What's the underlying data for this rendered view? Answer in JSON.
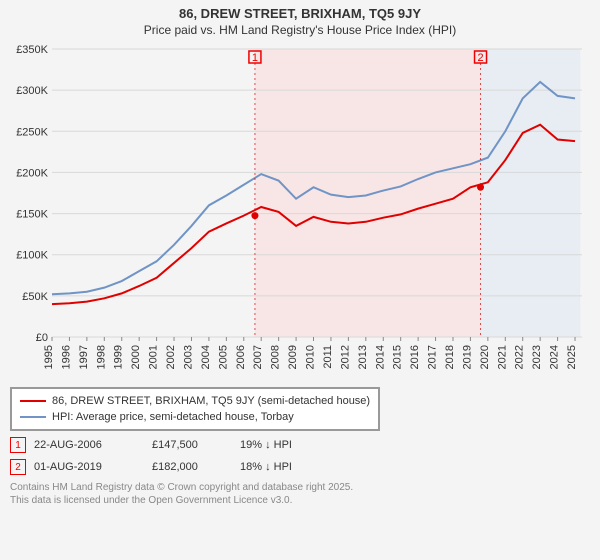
{
  "title": "86, DREW STREET, BRIXHAM, TQ5 9JY",
  "subtitle": "Price paid vs. HM Land Registry's House Price Index (HPI)",
  "chart": {
    "type": "line",
    "x_min_year": 1995,
    "x_max_year": 2025,
    "x_tick_years": [
      1995,
      1996,
      1997,
      1998,
      1999,
      2000,
      2001,
      2002,
      2003,
      2004,
      2005,
      2006,
      2007,
      2008,
      2009,
      2010,
      2011,
      2012,
      2013,
      2014,
      2015,
      2016,
      2017,
      2018,
      2019,
      2020,
      2021,
      2022,
      2023,
      2024,
      2025
    ],
    "ylim": [
      0,
      350000
    ],
    "ytick_step": 50000,
    "ytick_labels": [
      "£0",
      "£50K",
      "£100K",
      "£150K",
      "£200K",
      "£250K",
      "£300K",
      "£350K"
    ],
    "background_color": "#f4f4f4",
    "grid_color": "#d8d8d8",
    "line_width": 2,
    "series": [
      {
        "id": "hpi",
        "label": "HPI: Average price, semi-detached house, Torbay",
        "color": "#6f94c5",
        "points_by_year": {
          "1995": 52000,
          "1996": 53000,
          "1997": 55000,
          "1998": 60000,
          "1999": 68000,
          "2000": 80000,
          "2001": 92000,
          "2002": 112000,
          "2003": 135000,
          "2004": 160000,
          "2005": 172000,
          "2006": 185000,
          "2007": 198000,
          "2008": 190000,
          "2009": 168000,
          "2010": 182000,
          "2011": 173000,
          "2012": 170000,
          "2013": 172000,
          "2014": 178000,
          "2015": 183000,
          "2016": 192000,
          "2017": 200000,
          "2018": 205000,
          "2019": 210000,
          "2020": 218000,
          "2021": 250000,
          "2022": 290000,
          "2023": 310000,
          "2024": 293000,
          "2025": 290000
        }
      },
      {
        "id": "price_paid",
        "label": "86, DREW STREET, BRIXHAM, TQ5 9JY (semi-detached house)",
        "color": "#e00000",
        "points_by_year": {
          "1995": 40000,
          "1996": 41000,
          "1997": 43000,
          "1998": 47000,
          "1999": 53000,
          "2000": 62000,
          "2001": 72000,
          "2002": 90000,
          "2003": 108000,
          "2004": 128000,
          "2005": 138000,
          "2006": 147500,
          "2007": 158000,
          "2008": 152000,
          "2009": 135000,
          "2010": 146000,
          "2011": 140000,
          "2012": 138000,
          "2013": 140000,
          "2014": 145000,
          "2015": 149000,
          "2016": 156000,
          "2017": 162000,
          "2018": 168000,
          "2019": 182000,
          "2020": 188000,
          "2021": 215000,
          "2022": 248000,
          "2023": 258000,
          "2024": 240000,
          "2025": 238000
        }
      }
    ],
    "sale_markers": [
      {
        "num": "1",
        "year": 2006.64,
        "y": 147500
      },
      {
        "num": "2",
        "year": 2019.58,
        "y": 182000
      }
    ],
    "regions": [
      {
        "from_year": 2006.64,
        "to_year": 2019.58,
        "fill": "#ffcccc",
        "opacity": 0.35
      },
      {
        "from_year": 2019.58,
        "to_year": 2025.3,
        "fill": "#cfe0ef",
        "opacity": 0.35
      }
    ]
  },
  "legend": {
    "rows": [
      {
        "color": "#e00000",
        "text": "86, DREW STREET, BRIXHAM, TQ5 9JY (semi-detached house)"
      },
      {
        "color": "#6f94c5",
        "text": "HPI: Average price, semi-detached house, Torbay"
      }
    ]
  },
  "sales": [
    {
      "num": "1",
      "date": "22-AUG-2006",
      "price": "£147,500",
      "hpi": "19% ↓ HPI"
    },
    {
      "num": "2",
      "date": "01-AUG-2019",
      "price": "£182,000",
      "hpi": "18% ↓ HPI"
    }
  ],
  "credits_line1": "Contains HM Land Registry data © Crown copyright and database right 2025.",
  "credits_line2": "This data is licensed under the Open Government Licence v3.0."
}
